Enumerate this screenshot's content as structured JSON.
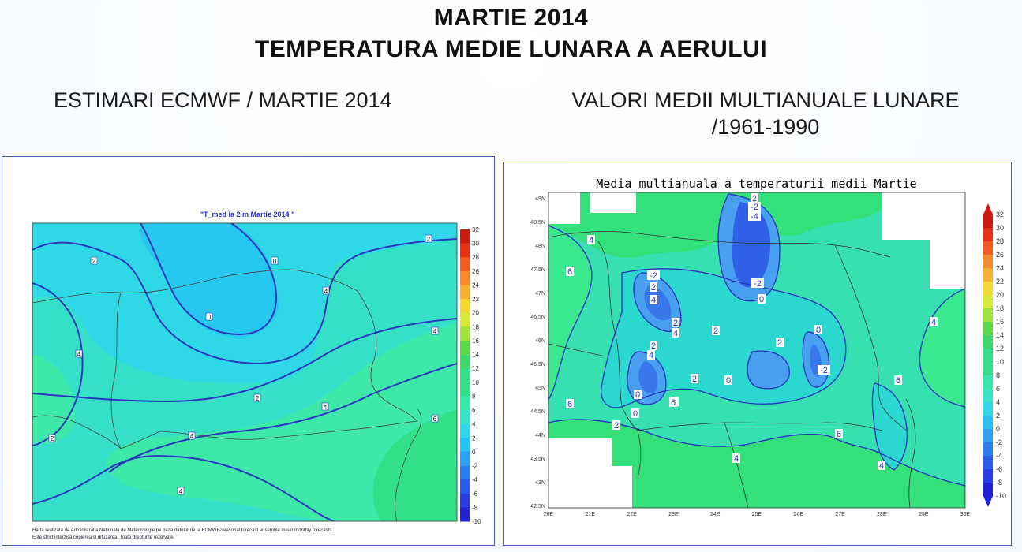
{
  "header": {
    "title_line1": "MARTIE 2014",
    "title_line2": "TEMPERATURA MEDIE LUNARA A AERULUI"
  },
  "left": {
    "subtitle": "ESTIMARI ECMWF / MARTIE 2014",
    "map_title": "\"T_med la 2 m Martie 2014 \"",
    "footnote_line1": "Harta realizata de Administratia Nationala de Meteorologie pe baza datelor de la ECMWF-seasonal forecast ensemble mean monthly forecasts.",
    "footnote_line2": "Este strict interzisa copierea si difuzarea. Toate drepturile rezervate.",
    "colorbar_ticks": [
      "32",
      "30",
      "28",
      "26",
      "24",
      "22",
      "20",
      "18",
      "16",
      "14",
      "12",
      "10",
      "8",
      "6",
      "4",
      "2",
      "0",
      "-2",
      "-4",
      "-6",
      "-8",
      "-10"
    ],
    "contour_labels": [
      "2",
      "0",
      "0",
      "2",
      "4",
      "4",
      "2",
      "4",
      "4",
      "4",
      "2",
      "4",
      "6"
    ]
  },
  "right": {
    "subtitle_line1": "VALORI MEDII MULTIANUALE LUNARE",
    "subtitle_line2": "/1961-1990",
    "map_title": "Media multianuala a temperaturii medii Martie",
    "lat_ticks": [
      "49N",
      "48.5N",
      "48N",
      "47.5N",
      "47N",
      "46.5N",
      "46N",
      "45.5N",
      "45N",
      "44.5N",
      "44N",
      "43.5N",
      "43N",
      "42.5N"
    ],
    "lon_ticks": [
      "20E",
      "21E",
      "22E",
      "23E",
      "24E",
      "25E",
      "26E",
      "27E",
      "28E",
      "29E",
      "30E"
    ],
    "colorbar_ticks": [
      "32",
      "30",
      "28",
      "26",
      "24",
      "22",
      "20",
      "18",
      "16",
      "14",
      "12",
      "10",
      "8",
      "6",
      "4",
      "2",
      "0",
      "-2",
      "-4",
      "-6",
      "-8",
      "-10"
    ],
    "contour_labels": [
      "6",
      "4",
      "2",
      "-2",
      "-4",
      "-2",
      "0",
      "-2",
      "2",
      "4",
      "2",
      "4",
      "2",
      "0",
      "2",
      "2",
      "-2",
      "0",
      "2",
      "4",
      "0",
      "2",
      "0",
      "2",
      "6",
      "4",
      "6",
      "6",
      "6",
      "4",
      "4"
    ]
  }
}
